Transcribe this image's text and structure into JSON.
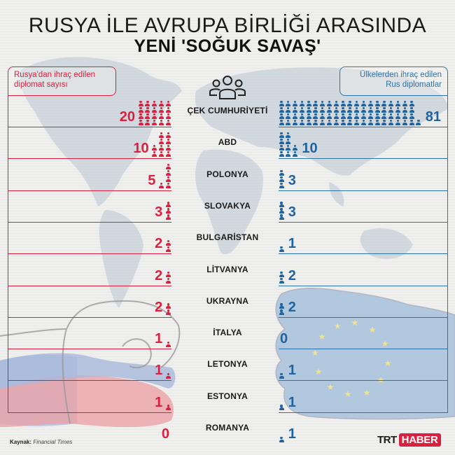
{
  "header": {
    "title_line1": "RUSYA İLE AVRUPA BİRLİĞİ ARASINDA",
    "title_line2": "YENİ 'SOĞUK SAVAŞ'"
  },
  "legend": {
    "left_label": "Rusya'dan ihraç edilen diplomat sayısı",
    "right_label": "Ülkelerden ihraç edilen Rus diplomatlar",
    "center_icon": "people-group-icon",
    "left_color": "#d9203f",
    "right_color": "#1f64a0"
  },
  "rows": [
    {
      "country": "ÇEK CUMHURİYETİ",
      "expelled_by_russia": "20",
      "expelled_russians": "81"
    },
    {
      "country": "ABD",
      "expelled_by_russia": "10",
      "expelled_russians": "10"
    },
    {
      "country": "POLONYA",
      "expelled_by_russia": "5",
      "expelled_russians": "3"
    },
    {
      "country": "SLOVAKYA",
      "expelled_by_russia": "3",
      "expelled_russians": "3"
    },
    {
      "country": "BULGARİSTAN",
      "expelled_by_russia": "2",
      "expelled_russians": "1"
    },
    {
      "country": "LİTVANYA",
      "expelled_by_russia": "2",
      "expelled_russians": "2"
    },
    {
      "country": "UKRAYNA",
      "expelled_by_russia": "2",
      "expelled_russians": "2"
    },
    {
      "country": "İTALYA",
      "expelled_by_russia": "1",
      "expelled_russians": "0"
    },
    {
      "country": "LETONYA",
      "expelled_by_russia": "1",
      "expelled_russians": "1"
    },
    {
      "country": "ESTONYA",
      "expelled_by_russia": "1",
      "expelled_russians": "1"
    },
    {
      "country": "ROMANYA",
      "expelled_by_russia": "0",
      "expelled_russians": "1"
    }
  ],
  "footer": {
    "source_label": "Kaynak:",
    "source_value": "Financial Times",
    "logo_left": "TRT",
    "logo_right": "HABER"
  },
  "chart_data": {
    "type": "bar",
    "title": "RUSYA İLE AVRUPA BİRLİĞİ ARASINDA YENİ 'SOĞUK SAVAŞ'",
    "categories": [
      "ÇEK CUMHURİYETİ",
      "ABD",
      "POLONYA",
      "SLOVAKYA",
      "BULGARİSTAN",
      "LİTVANYA",
      "UKRAYNA",
      "İTALYA",
      "LETONYA",
      "ESTONYA",
      "ROMANYA"
    ],
    "series": [
      {
        "name": "Rusya'dan ihraç edilen diplomat sayısı",
        "color": "#d9203f",
        "values": [
          20,
          10,
          5,
          3,
          2,
          2,
          2,
          1,
          1,
          1,
          0
        ]
      },
      {
        "name": "Ülkelerden ihraç edilen Rus diplomatlar",
        "color": "#1f64a0",
        "values": [
          81,
          10,
          3,
          3,
          1,
          2,
          2,
          0,
          1,
          1,
          1
        ]
      }
    ],
    "orientation": "horizontal-butterfly (pictogram)",
    "xlabel": "",
    "ylabel": "",
    "source": "Kaynak: Financial Times"
  }
}
